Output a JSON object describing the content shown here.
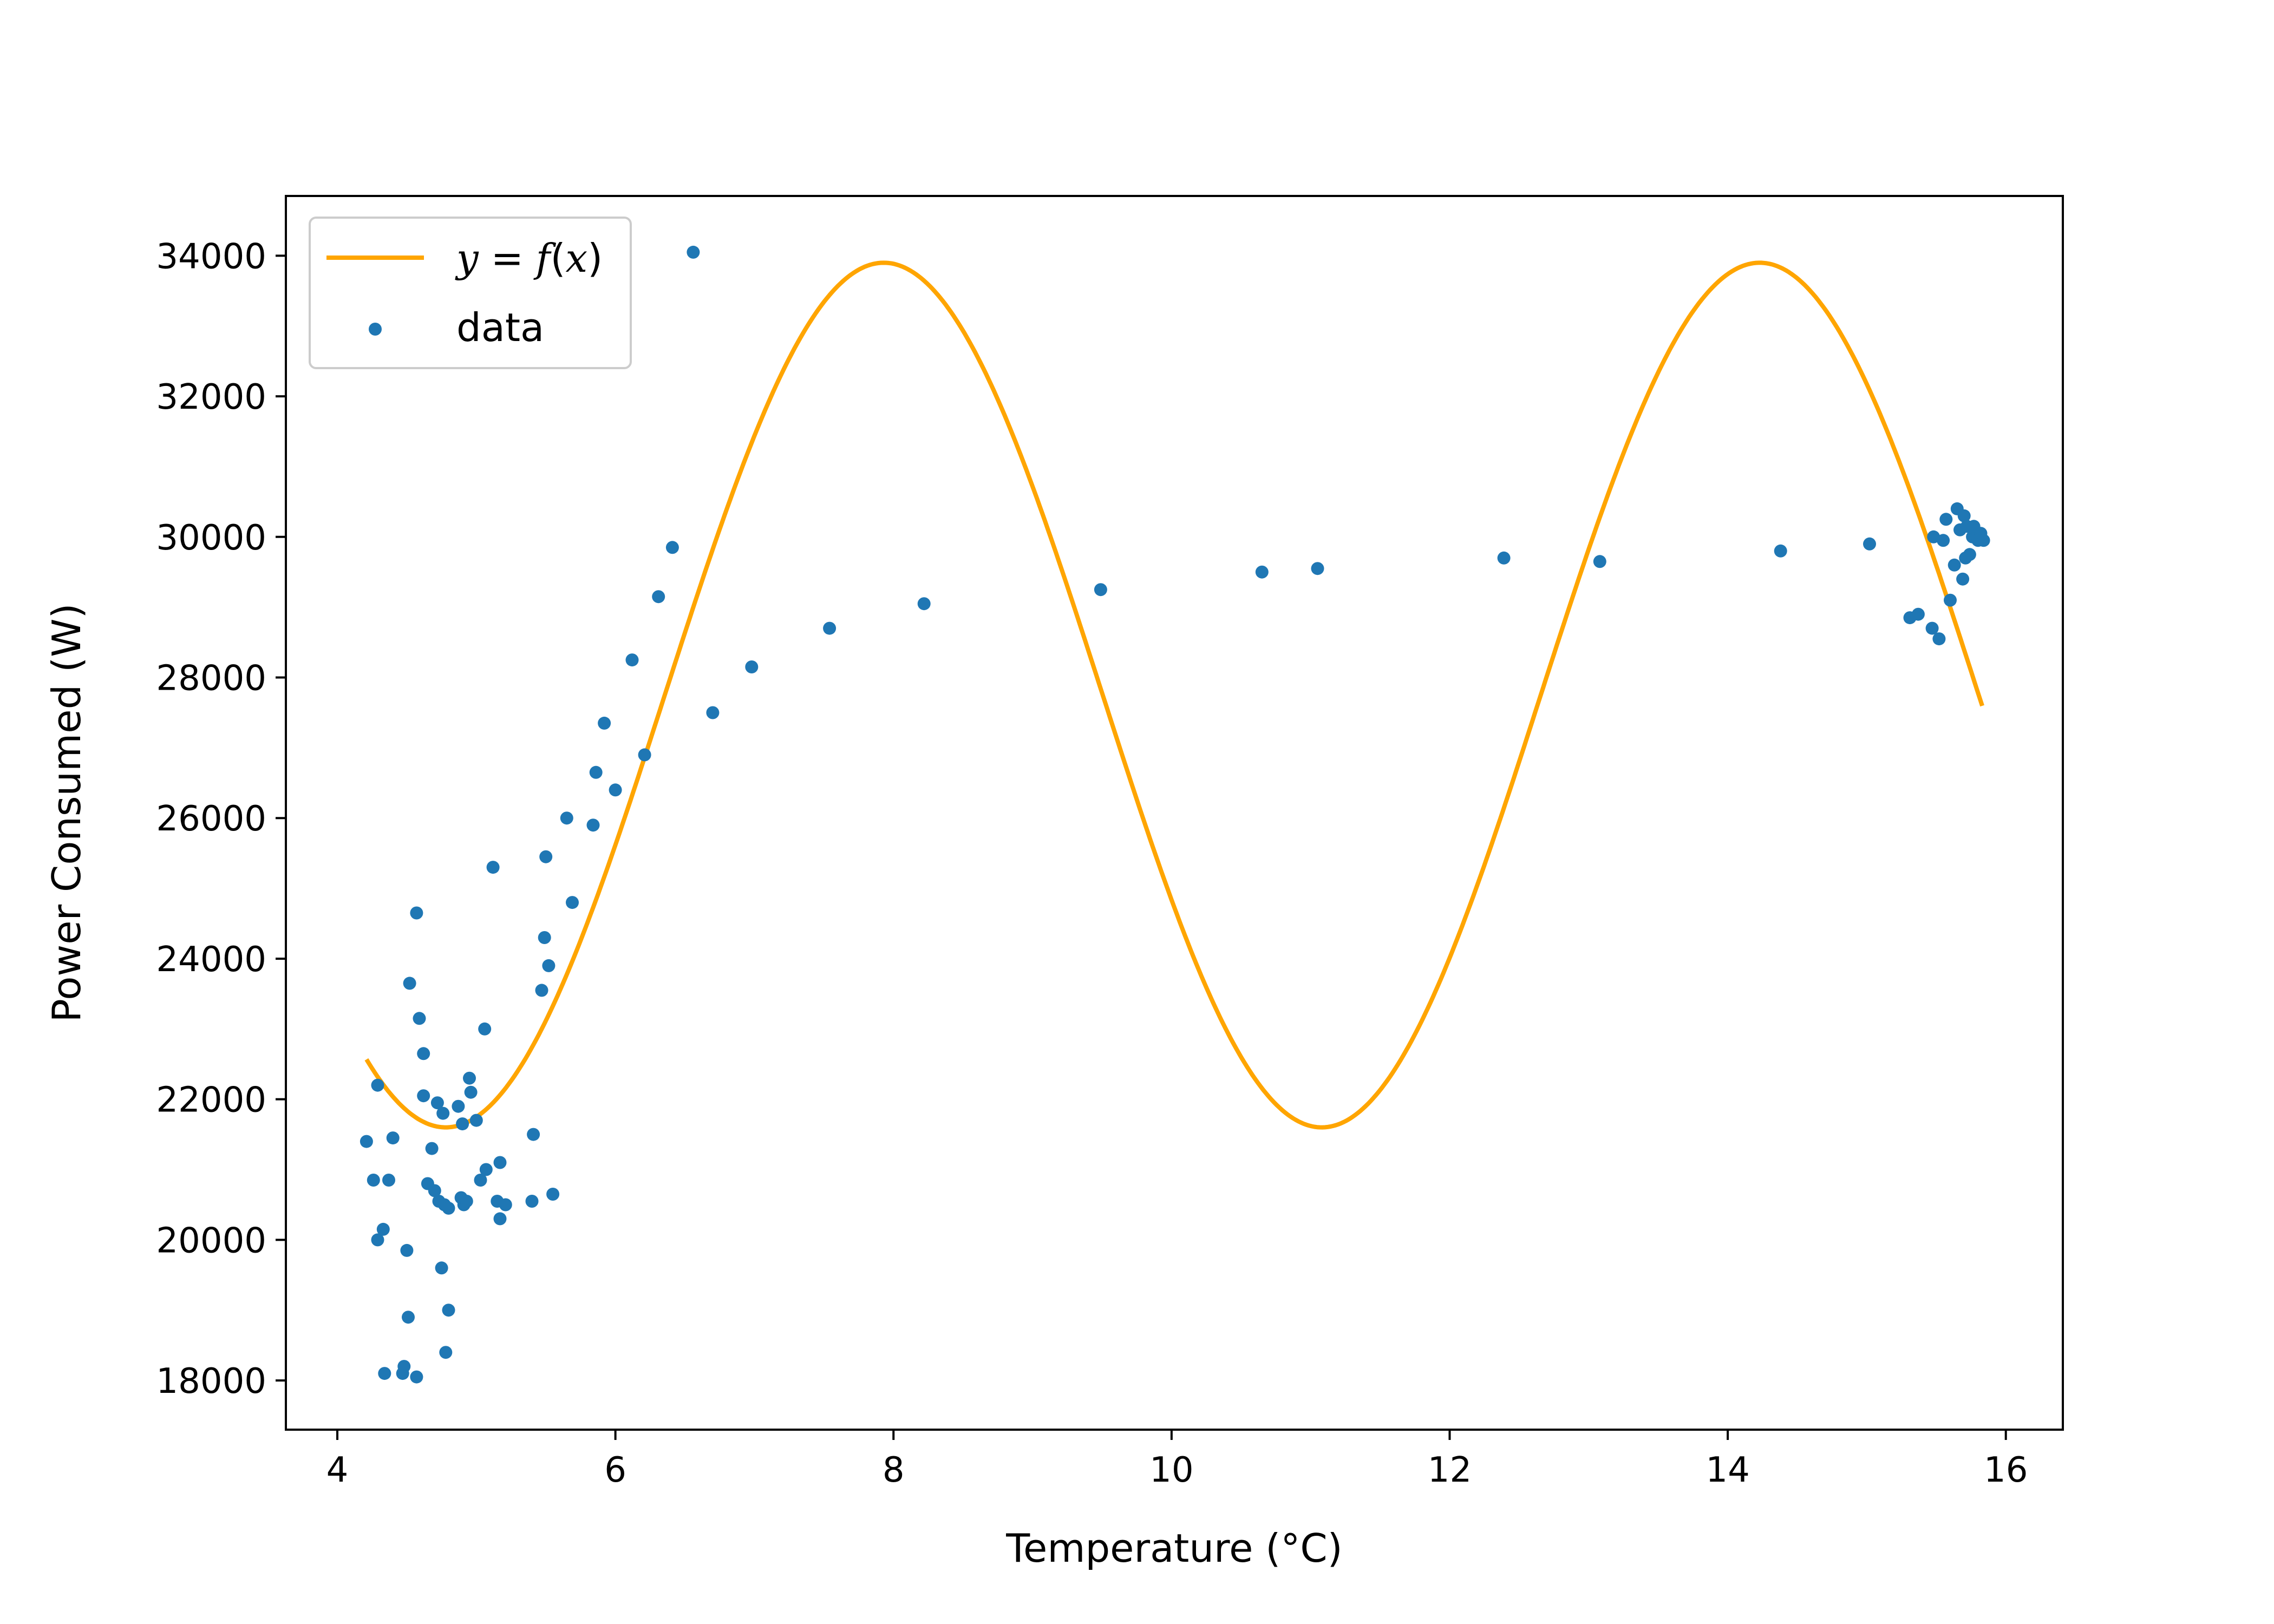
{
  "chart_data": {
    "type": "scatter",
    "xlabel": "Temperature (°C)",
    "ylabel": "Power Consumed (W)",
    "xlim": [
      3.63,
      16.41
    ],
    "ylim": [
      17300,
      34850
    ],
    "xticks": [
      4,
      6,
      8,
      10,
      12,
      14,
      16
    ],
    "yticks": [
      18000,
      20000,
      22000,
      24000,
      26000,
      28000,
      30000,
      32000,
      34000
    ],
    "grid": false,
    "legend": {
      "placement": "top-left"
    },
    "series": [
      {
        "name": "y = f(x)",
        "kind": "line",
        "color": "#ffa500",
        "function": {
          "offset": 27750,
          "amplitude": 6150,
          "period": 6.3,
          "peak_x": 7.93
        },
        "x_range": [
          4.21,
          15.83
        ]
      },
      {
        "name": "data",
        "kind": "scatter",
        "color": "#1f77b4",
        "points": [
          [
            4.21,
            21400
          ],
          [
            4.26,
            20850
          ],
          [
            4.29,
            22200
          ],
          [
            4.29,
            20000
          ],
          [
            4.33,
            20150
          ],
          [
            4.34,
            18100
          ],
          [
            4.37,
            20850
          ],
          [
            4.4,
            21450
          ],
          [
            4.47,
            18100
          ],
          [
            4.48,
            18200
          ],
          [
            4.5,
            19850
          ],
          [
            4.51,
            18900
          ],
          [
            4.52,
            23650
          ],
          [
            4.57,
            24650
          ],
          [
            4.57,
            18050
          ],
          [
            4.59,
            23150
          ],
          [
            4.62,
            22650
          ],
          [
            4.62,
            22050
          ],
          [
            4.65,
            20800
          ],
          [
            4.68,
            21300
          ],
          [
            4.7,
            20700
          ],
          [
            4.72,
            21950
          ],
          [
            4.73,
            20550
          ],
          [
            4.75,
            19600
          ],
          [
            4.76,
            21800
          ],
          [
            4.77,
            20500
          ],
          [
            4.78,
            18400
          ],
          [
            4.8,
            19000
          ],
          [
            4.8,
            20450
          ],
          [
            4.87,
            21900
          ],
          [
            4.89,
            20600
          ],
          [
            4.9,
            21650
          ],
          [
            4.91,
            20500
          ],
          [
            4.93,
            20550
          ],
          [
            4.95,
            22300
          ],
          [
            4.96,
            22100
          ],
          [
            5.0,
            21700
          ],
          [
            5.03,
            20850
          ],
          [
            5.06,
            23000
          ],
          [
            5.07,
            21000
          ],
          [
            5.12,
            25300
          ],
          [
            5.15,
            20550
          ],
          [
            5.17,
            21100
          ],
          [
            5.17,
            20300
          ],
          [
            5.21,
            20500
          ],
          [
            5.4,
            20550
          ],
          [
            5.41,
            21500
          ],
          [
            5.47,
            23550
          ],
          [
            5.49,
            24300
          ],
          [
            5.5,
            25450
          ],
          [
            5.52,
            23900
          ],
          [
            5.55,
            20650
          ],
          [
            5.65,
            26000
          ],
          [
            5.69,
            24800
          ],
          [
            5.84,
            25900
          ],
          [
            5.86,
            26650
          ],
          [
            5.92,
            27350
          ],
          [
            6.0,
            26400
          ],
          [
            6.12,
            28250
          ],
          [
            6.21,
            26900
          ],
          [
            6.31,
            29150
          ],
          [
            6.41,
            29850
          ],
          [
            6.56,
            34050
          ],
          [
            6.7,
            27500
          ],
          [
            6.98,
            28150
          ],
          [
            7.54,
            28700
          ],
          [
            8.22,
            29050
          ],
          [
            9.49,
            29250
          ],
          [
            10.65,
            29500
          ],
          [
            11.05,
            29550
          ],
          [
            12.39,
            29700
          ],
          [
            13.08,
            29650
          ],
          [
            14.38,
            29800
          ],
          [
            15.02,
            29900
          ],
          [
            15.31,
            28850
          ],
          [
            15.37,
            28900
          ],
          [
            15.47,
            28700
          ],
          [
            15.48,
            30000
          ],
          [
            15.52,
            28550
          ],
          [
            15.55,
            29950
          ],
          [
            15.57,
            30250
          ],
          [
            15.6,
            29100
          ],
          [
            15.63,
            29600
          ],
          [
            15.65,
            30400
          ],
          [
            15.67,
            30100
          ],
          [
            15.69,
            29400
          ],
          [
            15.7,
            30300
          ],
          [
            15.71,
            29700
          ],
          [
            15.72,
            30150
          ],
          [
            15.74,
            29750
          ],
          [
            15.76,
            30000
          ],
          [
            15.77,
            30150
          ],
          [
            15.8,
            29950
          ],
          [
            15.82,
            30050
          ],
          [
            15.84,
            29950
          ]
        ]
      }
    ]
  }
}
